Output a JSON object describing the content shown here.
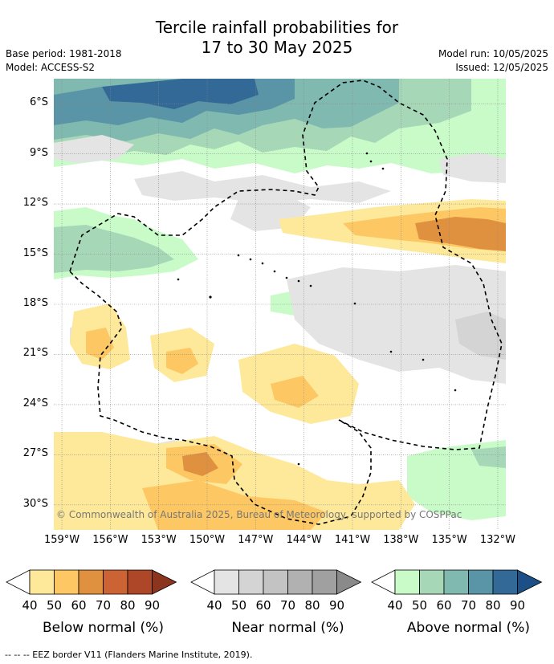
{
  "title": {
    "line1": "Tercile rainfall probabilities for",
    "line2": "17 to 30 May 2025"
  },
  "meta": {
    "base_period": "Base period: 1981-2018",
    "model": "Model: ACCESS-S2",
    "model_run": "Model run: 10/05/2025",
    "issued": "Issued: 12/05/2025"
  },
  "map": {
    "lon_range": [
      -159.5,
      -131.5
    ],
    "lat_range": [
      -31.5,
      -4.5
    ],
    "lat_ticks": [
      {
        "value": -6,
        "label": "6°S"
      },
      {
        "value": -9,
        "label": "9°S"
      },
      {
        "value": -12,
        "label": "12°S"
      },
      {
        "value": -15,
        "label": "15°S"
      },
      {
        "value": -18,
        "label": "18°S"
      },
      {
        "value": -21,
        "label": "21°S"
      },
      {
        "value": -24,
        "label": "24°S"
      },
      {
        "value": -27,
        "label": "27°S"
      },
      {
        "value": -30,
        "label": "30°S"
      }
    ],
    "lon_ticks": [
      {
        "value": -159,
        "label": "159°W"
      },
      {
        "value": -156,
        "label": "156°W"
      },
      {
        "value": -153,
        "label": "153°W"
      },
      {
        "value": -150,
        "label": "150°W"
      },
      {
        "value": -147,
        "label": "147°W"
      },
      {
        "value": -144,
        "label": "144°W"
      },
      {
        "value": -141,
        "label": "141°W"
      },
      {
        "value": -138,
        "label": "138°W"
      },
      {
        "value": -135,
        "label": "135°W"
      },
      {
        "value": -132,
        "label": "132°W"
      }
    ],
    "copyright": "© Commonwealth of Australia 2025, Bureau of Meteorology, supported by COSPPac"
  },
  "colorbars": [
    {
      "id": "below",
      "title": "Below normal (%)",
      "ticks": [
        "40",
        "50",
        "60",
        "70",
        "80",
        "90"
      ],
      "colors": [
        "#fee99a",
        "#fdc863",
        "#e0913f",
        "#cb6334",
        "#ad4727",
        "#8b351f"
      ]
    },
    {
      "id": "near",
      "title": "Near normal (%)",
      "ticks": [
        "40",
        "50",
        "60",
        "70",
        "80",
        "90"
      ],
      "colors": [
        "#e4e4e4",
        "#d4d4d4",
        "#c3c3c3",
        "#b1b1b1",
        "#a0a0a0",
        "#8a8a8a"
      ]
    },
    {
      "id": "above",
      "title": "Above normal (%)",
      "ticks": [
        "40",
        "50",
        "60",
        "70",
        "80",
        "90"
      ],
      "colors": [
        "#c8fbc8",
        "#a6d8b8",
        "#7fb9b0",
        "#5995a6",
        "#336996",
        "#1b4f86"
      ]
    }
  ],
  "footnote": "--  --  -- EEZ border V11 (Flanders Marine Institute, 2019)."
}
